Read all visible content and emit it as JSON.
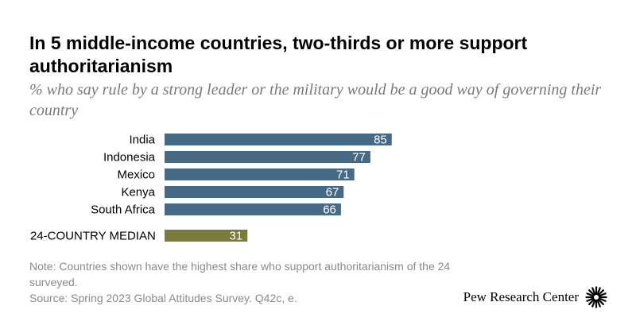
{
  "header": {
    "title": "In 5 middle-income countries, two-thirds or more support authoritarianism",
    "subtitle": "% who say rule by a strong leader or the military would be a good way of governing their country"
  },
  "chart_data": {
    "type": "bar",
    "orientation": "horizontal",
    "title": "",
    "xlabel": "",
    "ylabel": "",
    "categories": [
      "India",
      "Indonesia",
      "Mexico",
      "Kenya",
      "South Africa",
      "24-COUNTRY MEDIAN"
    ],
    "values": [
      85,
      77,
      71,
      67,
      66,
      31
    ],
    "xlim": [
      0,
      100
    ],
    "grid": false,
    "legend": "none",
    "colors": {
      "country": "#466a86",
      "median": "#7a7b38"
    }
  },
  "footer": {
    "note": "Note: Countries shown have the highest share who support authoritarianism of the 24 surveyed.",
    "source": "Source: Spring 2023 Global Attitudes Survey. Q42c, e.",
    "brand": "Pew Research Center",
    "logo_icon": "pew-sunburst-icon"
  }
}
